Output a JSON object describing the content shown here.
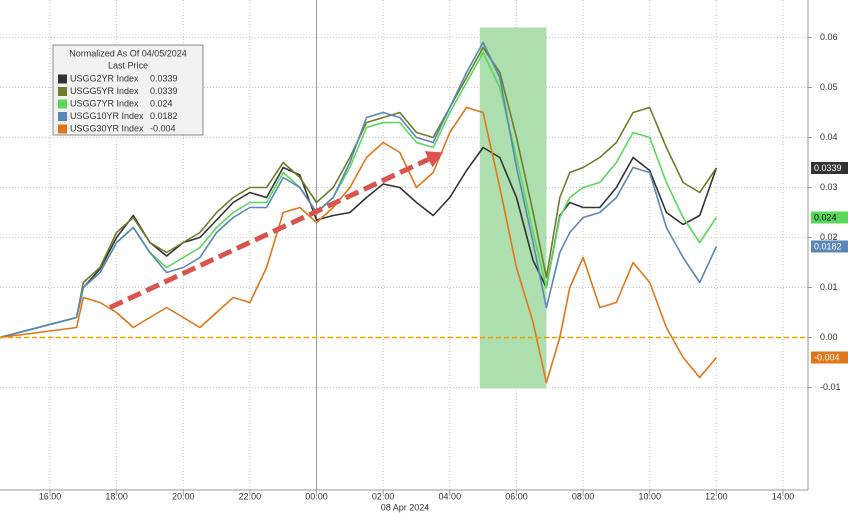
{
  "chart_data": {
    "type": "line",
    "legend_title": "Normalized As Of 04/05/2024",
    "legend_subtitle": "Last Price",
    "x_sublabel": "08 Apr 2024",
    "x": [
      -9.5,
      -7.2,
      -7,
      -6.5,
      -6,
      -5.5,
      -5,
      -4.5,
      -4,
      -3.5,
      -3,
      -2.5,
      -2,
      -1.5,
      -1,
      -0.5,
      0,
      0.5,
      1,
      1.5,
      2,
      2.5,
      3,
      3.5,
      4,
      4.5,
      5,
      5.5,
      6,
      6.5,
      6.9,
      7.3,
      7.6,
      8,
      8.5,
      9,
      9.5,
      10,
      10.5,
      11,
      11.5,
      12
    ],
    "series": [
      {
        "name": "USGG2YR Index",
        "last_price": 0.0339,
        "color": "#333333",
        "values": [
          0,
          0.004,
          0.01,
          0.0137,
          0.02,
          0.0244,
          0.019,
          0.0163,
          0.019,
          0.02,
          0.0235,
          0.027,
          0.029,
          0.028,
          0.034,
          0.0325,
          0.0235,
          0.0244,
          0.025,
          0.028,
          0.0307,
          0.03,
          0.027,
          0.0244,
          0.028,
          0.0334,
          0.038,
          0.036,
          0.028,
          0.0154,
          0.01,
          0.0244,
          0.027,
          0.026,
          0.026,
          0.03,
          0.036,
          0.0334,
          0.025,
          0.0226,
          0.0244,
          0.0339
        ]
      },
      {
        "name": "USGG5YR Index",
        "last_price": 0.0339,
        "color": "#6b7f2a",
        "values": [
          0,
          0.004,
          0.011,
          0.014,
          0.021,
          0.024,
          0.019,
          0.017,
          0.019,
          0.021,
          0.025,
          0.028,
          0.03,
          0.03,
          0.035,
          0.032,
          0.027,
          0.03,
          0.036,
          0.043,
          0.044,
          0.045,
          0.041,
          0.04,
          0.046,
          0.052,
          0.058,
          0.053,
          0.04,
          0.025,
          0.012,
          0.028,
          0.033,
          0.034,
          0.036,
          0.039,
          0.045,
          0.046,
          0.038,
          0.031,
          0.029,
          0.0339
        ]
      },
      {
        "name": "USGG7YR Index",
        "last_price": 0.024,
        "color": "#5ad85a",
        "values": [
          0,
          0.004,
          0.01,
          0.013,
          0.019,
          0.022,
          0.017,
          0.014,
          0.016,
          0.018,
          0.022,
          0.025,
          0.027,
          0.027,
          0.033,
          0.03,
          0.025,
          0.028,
          0.034,
          0.042,
          0.043,
          0.043,
          0.039,
          0.038,
          0.045,
          0.051,
          0.057,
          0.05,
          0.036,
          0.021,
          0.01,
          0.024,
          0.028,
          0.03,
          0.031,
          0.035,
          0.041,
          0.04,
          0.031,
          0.024,
          0.019,
          0.024
        ]
      },
      {
        "name": "USGG10YR Index",
        "last_price": 0.0182,
        "color": "#5b86b8",
        "values": [
          0,
          0.004,
          0.01,
          0.013,
          0.019,
          0.022,
          0.017,
          0.013,
          0.014,
          0.016,
          0.021,
          0.024,
          0.026,
          0.026,
          0.032,
          0.03,
          0.025,
          0.028,
          0.035,
          0.044,
          0.045,
          0.044,
          0.04,
          0.039,
          0.046,
          0.053,
          0.059,
          0.052,
          0.034,
          0.019,
          0.006,
          0.017,
          0.021,
          0.024,
          0.025,
          0.028,
          0.034,
          0.033,
          0.022,
          0.016,
          0.011,
          0.0182
        ]
      },
      {
        "name": "USGG30YR Index",
        "last_price": -0.004,
        "color": "#e0761a",
        "values": [
          0,
          0.002,
          0.008,
          0.007,
          0.005,
          0.002,
          0.004,
          0.006,
          0.004,
          0.002,
          0.005,
          0.008,
          0.007,
          0.014,
          0.025,
          0.026,
          0.023,
          0.026,
          0.03,
          0.036,
          0.039,
          0.037,
          0.03,
          0.033,
          0.041,
          0.046,
          0.045,
          0.03,
          0.014,
          0.003,
          -0.009,
          0.0,
          0.01,
          0.016,
          0.006,
          0.007,
          0.015,
          0.011,
          0.002,
          -0.004,
          -0.008,
          -0.004
        ]
      }
    ],
    "xlim": [
      -9.5,
      14.75
    ],
    "ylim": [
      -0.0305,
      0.0675
    ],
    "xticks": [
      {
        "value": -8,
        "label": "16:00"
      },
      {
        "value": -6,
        "label": "18:00"
      },
      {
        "value": -4,
        "label": "20:00"
      },
      {
        "value": -2,
        "label": "22:00"
      },
      {
        "value": 0,
        "label": "00:00"
      },
      {
        "value": 2,
        "label": "02:00"
      },
      {
        "value": 4,
        "label": "04:00"
      },
      {
        "value": 6,
        "label": "06:00"
      },
      {
        "value": 8,
        "label": "08:00"
      },
      {
        "value": 10,
        "label": "10:00"
      },
      {
        "value": 12,
        "label": "12:00"
      },
      {
        "value": 14,
        "label": "14:00"
      }
    ],
    "yticks": [
      0.06,
      0.05,
      0.04,
      0.03,
      0.02,
      0.01,
      {
        "value": 0,
        "label": "0.00"
      },
      -0.01
    ],
    "grid": true,
    "reference_line": {
      "y": 0,
      "color": "#e0a800"
    },
    "day_separator": 0,
    "highlight": {
      "x": [
        4.9,
        6.9
      ],
      "y": [
        -0.0102,
        0.062
      ],
      "color": "#9fd89f"
    },
    "arrow": {
      "x": [
        -6.2,
        3.8
      ],
      "y": [
        0.006,
        0.037
      ],
      "color": "#d9534f"
    },
    "legend": "top-left"
  }
}
